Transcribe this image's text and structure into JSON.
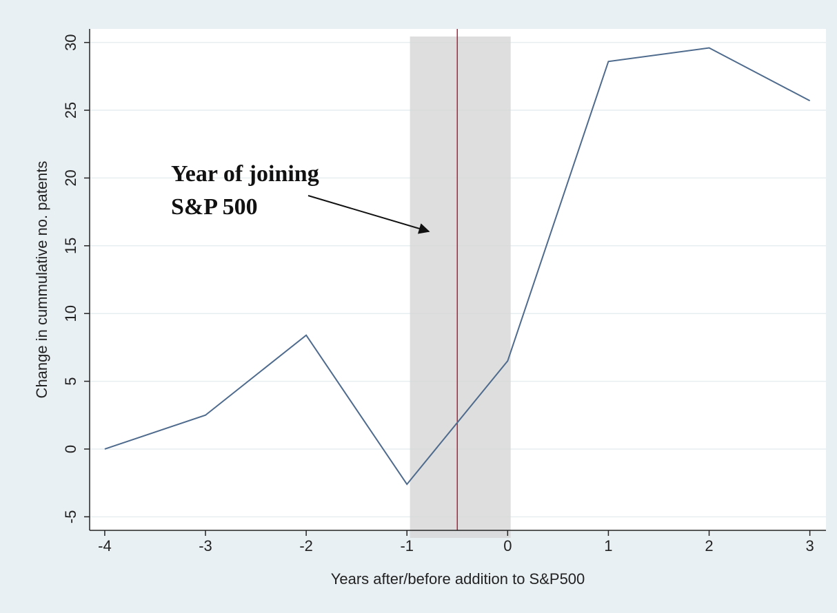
{
  "chart_data": {
    "type": "line",
    "x_label": "Years after/before addition to S&P500",
    "y_label": "Change in cummulative no. patents",
    "x": [
      -4,
      -3,
      -2,
      -1,
      0,
      1,
      2,
      3
    ],
    "values": [
      0.0,
      2.5,
      8.4,
      -2.6,
      6.5,
      28.6,
      29.6,
      25.7
    ],
    "color": "#4e6a8c",
    "xlim": [
      -4.15,
      3.16
    ],
    "ylim": [
      -6,
      31
    ],
    "xticks": [
      -4,
      -3,
      -2,
      -1,
      0,
      1,
      2,
      3
    ],
    "yticks": [
      -5,
      0,
      5,
      10,
      15,
      20,
      25,
      30
    ],
    "grid": true,
    "shade": [
      -0.97,
      0.03
    ],
    "shade_color": "#d6d6d6",
    "vline": -0.5,
    "vline_color": "#b0203a",
    "annotation": [
      "Year of joining",
      "S&P 500"
    ]
  }
}
